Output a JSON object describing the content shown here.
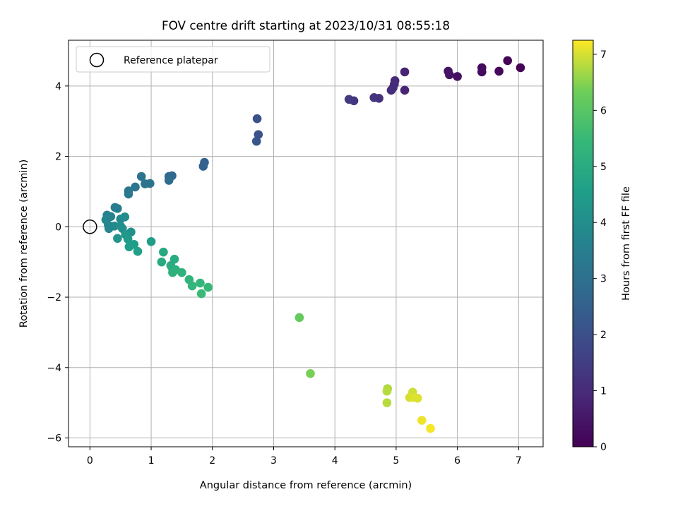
{
  "chart_data": {
    "type": "scatter",
    "title": "FOV centre drift starting at 2023/10/31 08:55:18",
    "xlabel": "Angular distance from reference (arcmin)",
    "ylabel": "Rotation from reference (arcmin)",
    "xlim": [
      -0.35,
      7.4
    ],
    "ylim": [
      -6.25,
      5.3
    ],
    "xticks": [
      0,
      1,
      2,
      3,
      4,
      5,
      6,
      7
    ],
    "yticks": [
      -6,
      -4,
      -2,
      0,
      2,
      4
    ],
    "grid": true,
    "legend": {
      "placement": "top-left",
      "entries": [
        "Reference platepar"
      ]
    },
    "reference_point": {
      "x": 0,
      "y": 0
    },
    "colormap": "viridis",
    "colorbar": {
      "label": "Hours from first FF file",
      "min": 0,
      "max": 7.25,
      "ticks": [
        0,
        1,
        2,
        3,
        4,
        5,
        6,
        7
      ]
    },
    "points": [
      {
        "x": 7.03,
        "y": 4.52,
        "c": 0.05
      },
      {
        "x": 6.82,
        "y": 4.72,
        "c": 0.1
      },
      {
        "x": 6.68,
        "y": 4.42,
        "c": 0.15
      },
      {
        "x": 6.4,
        "y": 4.52,
        "c": 0.2
      },
      {
        "x": 6.4,
        "y": 4.4,
        "c": 0.25
      },
      {
        "x": 6.0,
        "y": 4.27,
        "c": 0.35
      },
      {
        "x": 5.85,
        "y": 4.42,
        "c": 0.4
      },
      {
        "x": 5.87,
        "y": 4.32,
        "c": 0.45
      },
      {
        "x": 5.14,
        "y": 4.4,
        "c": 0.8
      },
      {
        "x": 5.14,
        "y": 3.88,
        "c": 0.85
      },
      {
        "x": 4.98,
        "y": 4.15,
        "c": 0.9
      },
      {
        "x": 4.97,
        "y": 4.05,
        "c": 0.95
      },
      {
        "x": 4.95,
        "y": 3.95,
        "c": 1.0
      },
      {
        "x": 4.92,
        "y": 3.88,
        "c": 1.05
      },
      {
        "x": 4.72,
        "y": 3.65,
        "c": 1.15
      },
      {
        "x": 4.64,
        "y": 3.67,
        "c": 1.2
      },
      {
        "x": 4.31,
        "y": 3.58,
        "c": 1.35
      },
      {
        "x": 4.23,
        "y": 3.62,
        "c": 1.4
      },
      {
        "x": 2.73,
        "y": 3.07,
        "c": 2.05
      },
      {
        "x": 2.75,
        "y": 2.62,
        "c": 2.1
      },
      {
        "x": 2.72,
        "y": 2.43,
        "c": 2.15
      },
      {
        "x": 1.87,
        "y": 1.83,
        "c": 2.5
      },
      {
        "x": 1.85,
        "y": 1.72,
        "c": 2.55
      },
      {
        "x": 1.34,
        "y": 1.45,
        "c": 2.75
      },
      {
        "x": 1.29,
        "y": 1.43,
        "c": 2.8
      },
      {
        "x": 1.29,
        "y": 1.32,
        "c": 2.85
      },
      {
        "x": 0.84,
        "y": 1.43,
        "c": 3.05
      },
      {
        "x": 0.9,
        "y": 1.22,
        "c": 3.1
      },
      {
        "x": 0.98,
        "y": 1.23,
        "c": 3.15
      },
      {
        "x": 0.74,
        "y": 1.13,
        "c": 3.2
      },
      {
        "x": 0.63,
        "y": 1.02,
        "c": 3.25
      },
      {
        "x": 0.63,
        "y": 0.93,
        "c": 3.3
      },
      {
        "x": 0.41,
        "y": 0.55,
        "c": 3.45
      },
      {
        "x": 0.45,
        "y": 0.52,
        "c": 3.5
      },
      {
        "x": 0.28,
        "y": 0.33,
        "c": 3.6
      },
      {
        "x": 0.34,
        "y": 0.29,
        "c": 3.65
      },
      {
        "x": 0.26,
        "y": 0.2,
        "c": 3.7
      },
      {
        "x": 0.3,
        "y": 0.05,
        "c": 3.75
      },
      {
        "x": 0.31,
        "y": -0.05,
        "c": 3.8
      },
      {
        "x": 0.4,
        "y": 0.02,
        "c": 3.85
      },
      {
        "x": 0.5,
        "y": 0.22,
        "c": 3.9
      },
      {
        "x": 0.57,
        "y": 0.28,
        "c": 3.95
      },
      {
        "x": 0.5,
        "y": 0.02,
        "c": 4.0
      },
      {
        "x": 0.53,
        "y": -0.05,
        "c": 4.05
      },
      {
        "x": 0.67,
        "y": -0.15,
        "c": 4.1
      },
      {
        "x": 0.45,
        "y": -0.33,
        "c": 4.2
      },
      {
        "x": 0.58,
        "y": -0.22,
        "c": 4.3
      },
      {
        "x": 0.62,
        "y": -0.35,
        "c": 4.4
      },
      {
        "x": 0.72,
        "y": -0.5,
        "c": 4.5
      },
      {
        "x": 0.64,
        "y": -0.57,
        "c": 4.55
      },
      {
        "x": 0.78,
        "y": -0.7,
        "c": 4.6
      },
      {
        "x": 1.0,
        "y": -0.42,
        "c": 4.5
      },
      {
        "x": 1.2,
        "y": -0.72,
        "c": 4.9
      },
      {
        "x": 1.17,
        "y": -1.0,
        "c": 4.95
      },
      {
        "x": 1.38,
        "y": -0.92,
        "c": 5.0
      },
      {
        "x": 1.32,
        "y": -1.1,
        "c": 5.05
      },
      {
        "x": 1.35,
        "y": -1.2,
        "c": 5.1
      },
      {
        "x": 1.4,
        "y": -1.22,
        "c": 5.15
      },
      {
        "x": 1.35,
        "y": -1.3,
        "c": 5.2
      },
      {
        "x": 1.5,
        "y": -1.3,
        "c": 5.25
      },
      {
        "x": 1.62,
        "y": -1.5,
        "c": 5.3
      },
      {
        "x": 1.67,
        "y": -1.68,
        "c": 5.35
      },
      {
        "x": 1.8,
        "y": -1.6,
        "c": 5.4
      },
      {
        "x": 1.93,
        "y": -1.72,
        "c": 5.45
      },
      {
        "x": 1.82,
        "y": -1.9,
        "c": 5.5
      },
      {
        "x": 3.42,
        "y": -2.58,
        "c": 6.2
      },
      {
        "x": 3.6,
        "y": -4.17,
        "c": 6.4
      },
      {
        "x": 4.86,
        "y": -4.6,
        "c": 6.75
      },
      {
        "x": 4.85,
        "y": -4.67,
        "c": 6.8
      },
      {
        "x": 4.85,
        "y": -5.0,
        "c": 6.8
      },
      {
        "x": 5.27,
        "y": -4.7,
        "c": 6.95
      },
      {
        "x": 5.22,
        "y": -4.85,
        "c": 7.0
      },
      {
        "x": 5.3,
        "y": -4.85,
        "c": 7.05
      },
      {
        "x": 5.35,
        "y": -4.87,
        "c": 7.05
      },
      {
        "x": 5.42,
        "y": -5.5,
        "c": 7.15
      },
      {
        "x": 5.56,
        "y": -5.73,
        "c": 7.2
      }
    ]
  }
}
